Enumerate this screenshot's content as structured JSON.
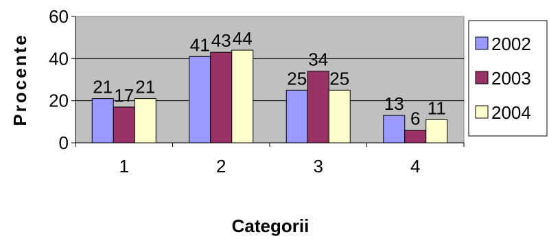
{
  "chart_data": {
    "type": "bar",
    "title": "",
    "xlabel": "Categorii",
    "ylabel": "Procente",
    "categories": [
      "1",
      "2",
      "3",
      "4"
    ],
    "series": [
      {
        "name": "2002",
        "values": [
          21,
          41,
          25,
          13
        ],
        "color": "#9999ff"
      },
      {
        "name": "2003",
        "values": [
          17,
          43,
          34,
          6
        ],
        "color": "#993366"
      },
      {
        "name": "2004",
        "values": [
          21,
          44,
          25,
          11
        ],
        "color": "#ffffcc"
      }
    ],
    "ylim": [
      0,
      60
    ],
    "yticks": [
      0,
      20,
      40,
      60
    ],
    "grid": true,
    "plot_background": "#c0c0c0",
    "legend_position": "right"
  }
}
